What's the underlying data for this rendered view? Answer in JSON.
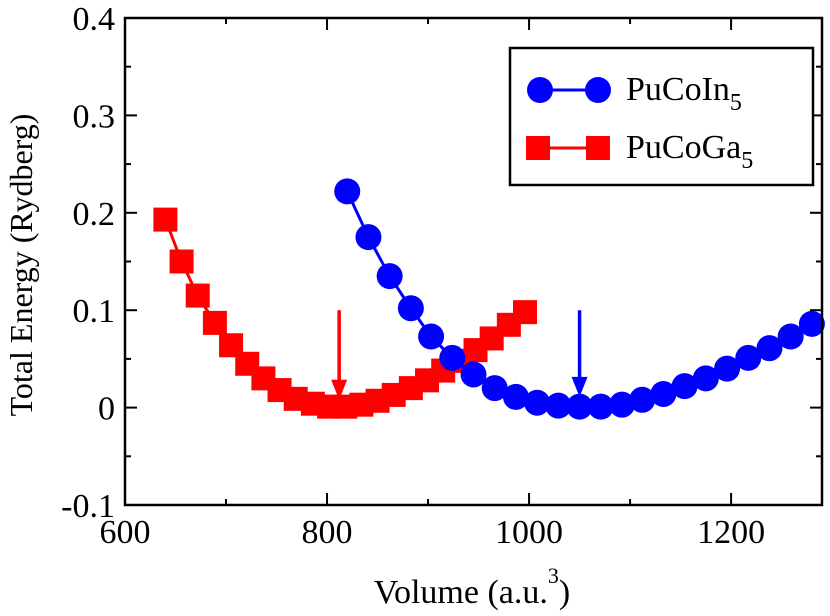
{
  "chart_data": {
    "type": "line",
    "title": "",
    "xlabel_main": "Volume (a.u.",
    "xlabel_sup": "3",
    "xlabel_close": ")",
    "ylabel": "Total Energy (Rydberg)",
    "xlim": [
      600,
      1290
    ],
    "ylim": [
      -0.1,
      0.4
    ],
    "xticks": [
      600,
      800,
      1000,
      1200
    ],
    "xtick_labels": [
      "600",
      "800",
      "1000",
      "1200"
    ],
    "yticks": [
      -0.1,
      0,
      0.1,
      0.2,
      0.3,
      0.4
    ],
    "ytick_labels": [
      "-0.1",
      "0",
      "0.1",
      "0.2",
      "0.3",
      "0.4"
    ],
    "legend_position": "top-right",
    "series": [
      {
        "name": "PuCoIn5",
        "label_base": "PuCoIn",
        "label_sub": "5",
        "color": "#0000ff",
        "marker": "circle",
        "x": [
          820,
          841,
          862,
          883,
          903,
          924,
          945,
          966,
          987,
          1008,
          1029,
          1050,
          1071,
          1092,
          1112,
          1133,
          1154,
          1175,
          1196,
          1217,
          1238,
          1259,
          1280
        ],
        "y": [
          0.222,
          0.175,
          0.135,
          0.102,
          0.073,
          0.051,
          0.034,
          0.02,
          0.011,
          0.005,
          0.002,
          0.001,
          0.001,
          0.003,
          0.008,
          0.014,
          0.022,
          0.03,
          0.04,
          0.051,
          0.061,
          0.073,
          0.086
        ]
      },
      {
        "name": "PuCoGa5",
        "label_base": "PuCoGa",
        "label_sub": "5",
        "color": "#ff0000",
        "marker": "square",
        "x": [
          640,
          656,
          672,
          689,
          705,
          721,
          737,
          753,
          769,
          786,
          802,
          818,
          834,
          850,
          866,
          883,
          899,
          915,
          931,
          947,
          963,
          980,
          996
        ],
        "y": [
          0.193,
          0.15,
          0.115,
          0.087,
          0.064,
          0.045,
          0.03,
          0.018,
          0.009,
          0.004,
          0.001,
          0.001,
          0.003,
          0.007,
          0.013,
          0.02,
          0.028,
          0.038,
          0.048,
          0.059,
          0.071,
          0.085,
          0.098
        ]
      }
    ],
    "arrows": [
      {
        "series": "PuCoGa5",
        "color": "#ff0000",
        "x": 812,
        "y_top": 0.1,
        "y_bottom": 0.008
      },
      {
        "series": "PuCoIn5",
        "color": "#0000ff",
        "x": 1050,
        "y_top": 0.1,
        "y_bottom": 0.011
      }
    ]
  }
}
